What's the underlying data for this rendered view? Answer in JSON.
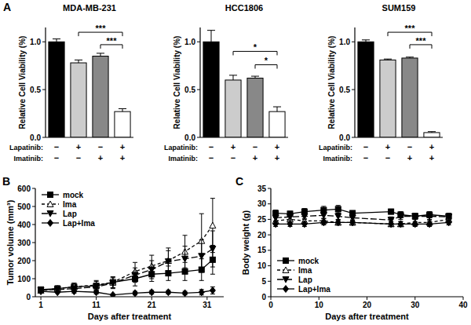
{
  "chart_data": [
    {
      "type": "bar",
      "title": "MDA-MB-231",
      "annotations": [
        "A"
      ],
      "ylabel": "Relative Cell Viability (%)",
      "categories": [
        null,
        null,
        null,
        null
      ],
      "values": [
        1.0,
        0.78,
        0.85,
        0.27
      ],
      "errors": [
        0.03,
        0.03,
        0.03,
        0.03
      ],
      "colors": [
        "#000000",
        "#cccccc",
        "#888888",
        "#ffffff"
      ],
      "ylim": [
        0,
        1.15
      ],
      "yticks": [
        {
          "value": 0,
          "label": "0.0"
        },
        {
          "value": 0.5,
          "label": "0.5"
        },
        {
          "value": 1,
          "label": "1.0"
        }
      ],
      "conditions": [
        {
          "name": "Lapatinib:",
          "values": [
            "−",
            "+",
            "−",
            "+"
          ]
        },
        {
          "name": "Imatinib:",
          "values": [
            "−",
            "−",
            "+",
            "+"
          ]
        }
      ],
      "significance": [
        {
          "from": 1,
          "to": 3,
          "label": "***",
          "y": 1.1
        },
        {
          "from": 2,
          "to": 3,
          "label": "***",
          "y": 0.97
        }
      ]
    },
    {
      "type": "bar",
      "title": "HCC1806",
      "ylabel": "Relative Cell Viability (%)",
      "categories": [
        null,
        null,
        null,
        null
      ],
      "values": [
        1.0,
        0.6,
        0.62,
        0.27
      ],
      "errors": [
        0.12,
        0.05,
        0.02,
        0.05
      ],
      "colors": [
        "#000000",
        "#cccccc",
        "#888888",
        "#ffffff"
      ],
      "ylim": [
        0,
        1.15
      ],
      "yticks": [
        {
          "value": 0,
          "label": "0.0"
        },
        {
          "value": 0.5,
          "label": "0.5"
        },
        {
          "value": 1,
          "label": "1.0"
        }
      ],
      "conditions": [
        {
          "name": "Lapatinib:",
          "values": [
            "−",
            "+",
            "−",
            "+"
          ]
        },
        {
          "name": "Imatinib:",
          "values": [
            "−",
            "−",
            "+",
            "+"
          ]
        }
      ],
      "significance": [
        {
          "from": 1,
          "to": 3,
          "label": "*",
          "y": 0.9
        },
        {
          "from": 2,
          "to": 3,
          "label": "*",
          "y": 0.76
        }
      ]
    },
    {
      "type": "bar",
      "title": "SUM159",
      "ylabel": "Relative Cell Viability (%)",
      "categories": [
        null,
        null,
        null,
        null
      ],
      "values": [
        1.0,
        0.81,
        0.83,
        0.05
      ],
      "errors": [
        0.02,
        0.01,
        0.01,
        0.01
      ],
      "colors": [
        "#000000",
        "#cccccc",
        "#888888",
        "#ffffff"
      ],
      "ylim": [
        0,
        1.15
      ],
      "yticks": [
        {
          "value": 0,
          "label": "0.0"
        },
        {
          "value": 0.5,
          "label": "0.5"
        },
        {
          "value": 1,
          "label": "1.0"
        }
      ],
      "conditions": [
        {
          "name": "Lapatinib:",
          "values": [
            "−",
            "+",
            "−",
            "+"
          ]
        },
        {
          "name": "Imatinib:",
          "values": [
            "−",
            "−",
            "+",
            "+"
          ]
        }
      ],
      "significance": [
        {
          "from": 1,
          "to": 3,
          "label": "***",
          "y": 1.1
        },
        {
          "from": 2,
          "to": 3,
          "label": "***",
          "y": 0.97
        }
      ]
    },
    {
      "type": "line",
      "annotations": [
        "B"
      ],
      "xlabel": "Days after treatment",
      "ylabel": "Tumor volume (mm³)",
      "x": [
        1,
        4,
        7,
        11,
        14,
        18,
        21,
        24,
        27,
        30,
        32
      ],
      "xlim": [
        0,
        34
      ],
      "xticks": [
        1,
        11,
        21,
        31
      ],
      "ylim": [
        0,
        600
      ],
      "yticks": [
        0,
        100,
        200,
        300,
        400,
        500,
        600
      ],
      "legend": "upper left",
      "series": [
        {
          "name": "mock",
          "color": "#000000",
          "marker": "square",
          "line_style": "solid",
          "values": [
            40,
            45,
            55,
            60,
            80,
            100,
            125,
            130,
            140,
            150,
            205
          ],
          "errors": [
            10,
            15,
            20,
            25,
            30,
            40,
            40,
            40,
            50,
            60,
            80
          ]
        },
        {
          "name": "Ima",
          "color": "#000000",
          "marker": "open-triangle",
          "line_style": "dashed",
          "values": [
            35,
            45,
            55,
            65,
            80,
            140,
            170,
            200,
            250,
            310,
            395
          ],
          "errors": [
            10,
            15,
            20,
            25,
            30,
            50,
            60,
            70,
            90,
            150,
            150
          ]
        },
        {
          "name": "Lap",
          "color": "#000000",
          "marker": "triangle-down",
          "line_style": "long-dashed",
          "values": [
            35,
            40,
            45,
            55,
            75,
            120,
            150,
            195,
            210,
            225,
            265
          ],
          "errors": [
            10,
            10,
            15,
            20,
            30,
            40,
            50,
            60,
            70,
            90,
            100
          ]
        },
        {
          "name": "Lap+Ima",
          "color": "#000000",
          "marker": "diamond",
          "line_style": "solid",
          "values": [
            30,
            25,
            30,
            25,
            10,
            20,
            25,
            25,
            20,
            25,
            35
          ],
          "errors": [
            5,
            5,
            10,
            10,
            5,
            10,
            10,
            10,
            10,
            15,
            20
          ]
        }
      ]
    },
    {
      "type": "line",
      "annotations": [
        "C"
      ],
      "xlabel": "Days after treatment",
      "ylabel": "Body weight (g)",
      "x": [
        1,
        4,
        7,
        11,
        14,
        17,
        25,
        27,
        30,
        33,
        37
      ],
      "xlim": [
        0,
        40
      ],
      "xticks": [
        0,
        10,
        20,
        30,
        40
      ],
      "ylim": [
        0,
        35
      ],
      "yticks": [
        0,
        5,
        10,
        15,
        20,
        25,
        30,
        35
      ],
      "legend": "lower left",
      "series": [
        {
          "name": "mock",
          "color": "#000000",
          "marker": "square",
          "line_style": "solid",
          "values": [
            27,
            26.8,
            27.5,
            28,
            28.3,
            27,
            27.5,
            26.5,
            26,
            26.5,
            26
          ],
          "errors": [
            1,
            0.8,
            1,
            1.2,
            1.2,
            0.8,
            0.8,
            1,
            1,
            1,
            1
          ]
        },
        {
          "name": "Ima",
          "color": "#000000",
          "marker": "open-triangle",
          "line_style": "dashed",
          "values": [
            24.5,
            25,
            24.5,
            24.5,
            24,
            24,
            23.5,
            23.5,
            24,
            24,
            25
          ],
          "errors": [
            1,
            1,
            0.8,
            0.8,
            0.8,
            0.8,
            0.8,
            0.8,
            1,
            1,
            1
          ]
        },
        {
          "name": "Lap",
          "color": "#000000",
          "marker": "triangle-down",
          "line_style": "long-dashed",
          "values": [
            25.5,
            25.8,
            26,
            26.3,
            26,
            25.5,
            24.8,
            26,
            26,
            26,
            25.8
          ],
          "errors": [
            1,
            1,
            1,
            1,
            1,
            1,
            1,
            1,
            1,
            1.2,
            1
          ]
        },
        {
          "name": "Lap+Ima",
          "color": "#000000",
          "marker": "diamond",
          "line_style": "solid",
          "values": [
            23.5,
            23.5,
            23.5,
            24,
            24,
            24,
            23.5,
            23.5,
            23.5,
            23.5,
            24
          ],
          "errors": [
            0.8,
            0.8,
            0.8,
            0.8,
            0.8,
            0.8,
            0.8,
            0.8,
            0.8,
            0.8,
            0.8
          ]
        }
      ]
    }
  ]
}
